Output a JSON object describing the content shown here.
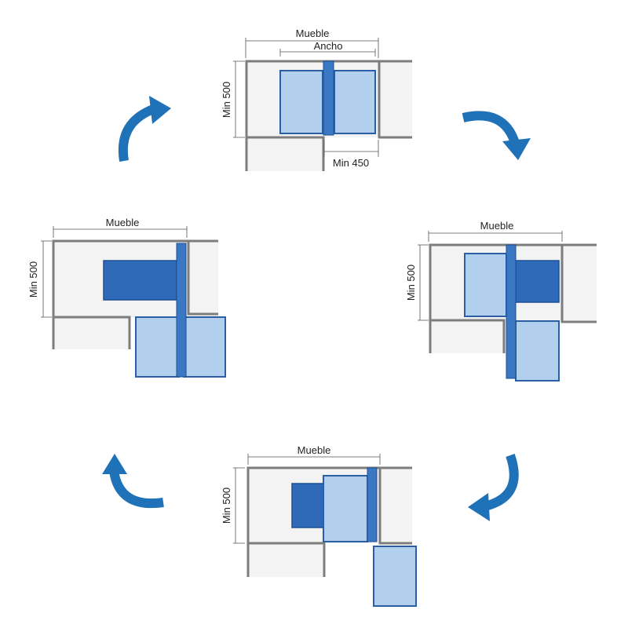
{
  "diagrams": {
    "top": {
      "mueble": "Mueble",
      "ancho": "Ancho",
      "min500": "Min 500",
      "min450": "Min 450"
    },
    "right": {
      "mueble": "Mueble",
      "min500": "Min 500"
    },
    "bottom": {
      "mueble": "Mueble",
      "min500": "Min 500"
    },
    "left": {
      "mueble": "Mueble",
      "min500": "Min 500"
    }
  },
  "colors": {
    "panel_light": "#b3cfee",
    "panel_dark": "#2f6ab8",
    "arrow": "#1f72b8",
    "wall": "#7d7d7d"
  },
  "arrows": [
    "clockwise-arrow-top-left",
    "clockwise-arrow-top-right",
    "clockwise-arrow-bottom-right",
    "clockwise-arrow-bottom-left"
  ]
}
